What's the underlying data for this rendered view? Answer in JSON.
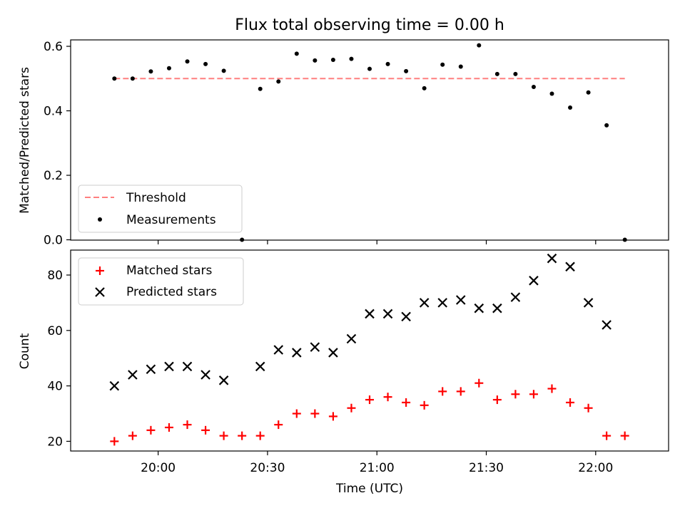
{
  "chart_data": [
    {
      "type": "scatter",
      "title": "Flux total observing time = 0.00 h",
      "xlabel": "",
      "ylabel": "Matched/Predicted stars",
      "ylim": [
        0,
        0.62
      ],
      "yticks": [
        "0.0",
        "0.2",
        "0.4",
        "0.6"
      ],
      "grid": false,
      "legend_position": "lower-left",
      "series": [
        {
          "name": "Threshold",
          "kind": "dashed-line",
          "color": "#ff7f7f",
          "x": [
            "19:48",
            "22:08"
          ],
          "y": [
            0.5,
            0.5
          ]
        },
        {
          "name": "Measurements",
          "kind": "dot",
          "color": "#000000",
          "x": [
            "19:48",
            "19:53",
            "19:58",
            "20:03",
            "20:08",
            "20:13",
            "20:18",
            "20:23",
            "20:28",
            "20:33",
            "20:38",
            "20:43",
            "20:48",
            "20:53",
            "20:58",
            "21:03",
            "21:08",
            "21:13",
            "21:18",
            "21:23",
            "21:28",
            "21:33",
            "21:38",
            "21:43",
            "21:48",
            "21:53",
            "21:58",
            "22:03",
            "22:08"
          ],
          "y": [
            0.5,
            0.5,
            0.522,
            0.532,
            0.553,
            0.545,
            0.524,
            0.0,
            0.468,
            0.491,
            0.577,
            0.556,
            0.558,
            0.561,
            0.53,
            0.545,
            0.523,
            0.47,
            0.543,
            0.537,
            0.603,
            0.514,
            0.514,
            0.474,
            0.453,
            0.41,
            0.457,
            0.355,
            0.0
          ]
        }
      ]
    },
    {
      "type": "scatter",
      "xlabel": "Time (UTC)",
      "ylabel": "Count",
      "ylim": [
        16.5,
        89
      ],
      "yticks": [
        "20",
        "40",
        "60",
        "80"
      ],
      "xticks": [
        "20:00",
        "20:30",
        "21:00",
        "21:30",
        "22:00"
      ],
      "grid": false,
      "legend_position": "top-left",
      "series": [
        {
          "name": "Matched stars",
          "marker": "plus",
          "color": "#ff0000",
          "x": [
            "19:48",
            "19:53",
            "19:58",
            "20:03",
            "20:08",
            "20:13",
            "20:18",
            "20:23",
            "20:28",
            "20:33",
            "20:38",
            "20:43",
            "20:48",
            "20:53",
            "20:58",
            "21:03",
            "21:08",
            "21:13",
            "21:18",
            "21:23",
            "21:28",
            "21:33",
            "21:38",
            "21:43",
            "21:48",
            "21:53",
            "21:58",
            "22:03",
            "22:08"
          ],
          "y": [
            20,
            22,
            24,
            25,
            26,
            24,
            22,
            22,
            22,
            26,
            30,
            30,
            29,
            32,
            35,
            36,
            34,
            33,
            38,
            38,
            41,
            35,
            37,
            37,
            39,
            34,
            32,
            22,
            22
          ]
        },
        {
          "name": "Predicted stars",
          "marker": "x",
          "color": "#000000",
          "x": [
            "19:48",
            "19:53",
            "19:58",
            "20:03",
            "20:08",
            "20:13",
            "20:18",
            "20:28",
            "20:33",
            "20:38",
            "20:43",
            "20:48",
            "20:53",
            "20:58",
            "21:03",
            "21:08",
            "21:13",
            "21:18",
            "21:23",
            "21:28",
            "21:33",
            "21:38",
            "21:43",
            "21:48",
            "21:53",
            "21:58",
            "22:03"
          ],
          "y": [
            40,
            44,
            46,
            47,
            47,
            44,
            42,
            47,
            53,
            52,
            54,
            52,
            57,
            66,
            66,
            65,
            70,
            70,
            71,
            68,
            68,
            72,
            78,
            86,
            83,
            70,
            62
          ]
        }
      ]
    }
  ]
}
